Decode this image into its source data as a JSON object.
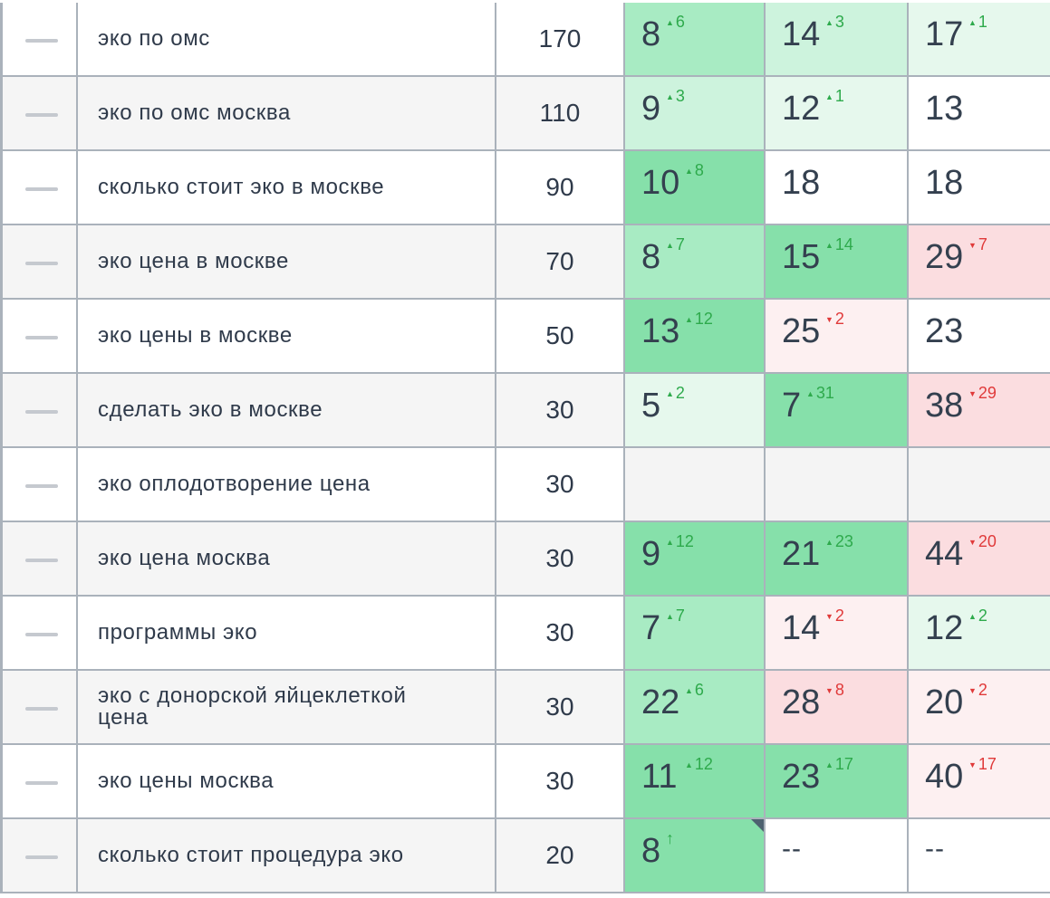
{
  "colors": {
    "green_strong": "#86e0aa",
    "green_medium": "#a8ebc3",
    "green_light": "#cdf3dd",
    "green_pale": "#e6f8ed",
    "red_medium": "#fbdde0",
    "red_pale": "#fdf0f1",
    "empty_gray": "#f4f4f4",
    "white": "#ffffff",
    "up_text": "#2eaa4c",
    "down_text": "#e03a3a",
    "grid_border": "#aab2bb"
  },
  "rows": [
    {
      "keyword": "эко по омс",
      "frequency": "170",
      "positions": [
        {
          "value": "8",
          "change": "6",
          "dir": "up",
          "bg": "green_medium"
        },
        {
          "value": "14",
          "change": "3",
          "dir": "up",
          "bg": "green_light"
        },
        {
          "value": "17",
          "change": "1",
          "dir": "up",
          "bg": "green_pale"
        }
      ]
    },
    {
      "keyword": "эко по омс москва",
      "frequency": "110",
      "positions": [
        {
          "value": "9",
          "change": "3",
          "dir": "up",
          "bg": "green_light"
        },
        {
          "value": "12",
          "change": "1",
          "dir": "up",
          "bg": "green_pale"
        },
        {
          "value": "13",
          "change": "",
          "dir": "",
          "bg": "white"
        }
      ]
    },
    {
      "keyword": "сколько стоит эко в москве",
      "frequency": "90",
      "positions": [
        {
          "value": "10",
          "change": "8",
          "dir": "up",
          "bg": "green_strong"
        },
        {
          "value": "18",
          "change": "",
          "dir": "",
          "bg": "white"
        },
        {
          "value": "18",
          "change": "",
          "dir": "",
          "bg": "white"
        }
      ]
    },
    {
      "keyword": "эко цена в москве",
      "frequency": "70",
      "positions": [
        {
          "value": "8",
          "change": "7",
          "dir": "up",
          "bg": "green_medium"
        },
        {
          "value": "15",
          "change": "14",
          "dir": "up",
          "bg": "green_strong"
        },
        {
          "value": "29",
          "change": "7",
          "dir": "down",
          "bg": "red_medium"
        }
      ]
    },
    {
      "keyword": "эко цены в москве",
      "frequency": "50",
      "positions": [
        {
          "value": "13",
          "change": "12",
          "dir": "up",
          "bg": "green_strong"
        },
        {
          "value": "25",
          "change": "2",
          "dir": "down",
          "bg": "red_pale"
        },
        {
          "value": "23",
          "change": "",
          "dir": "",
          "bg": "white"
        }
      ]
    },
    {
      "keyword": "сделать эко в москве",
      "frequency": "30",
      "positions": [
        {
          "value": "5",
          "change": "2",
          "dir": "up",
          "bg": "green_pale"
        },
        {
          "value": "7",
          "change": "31",
          "dir": "up",
          "bg": "green_strong"
        },
        {
          "value": "38",
          "change": "29",
          "dir": "down",
          "bg": "red_medium"
        }
      ]
    },
    {
      "keyword": "эко оплодотворение цена",
      "frequency": "30",
      "positions": [
        {
          "value": "",
          "change": "",
          "dir": "",
          "bg": "empty_gray"
        },
        {
          "value": "",
          "change": "",
          "dir": "",
          "bg": "empty_gray"
        },
        {
          "value": "",
          "change": "",
          "dir": "",
          "bg": "empty_gray"
        }
      ]
    },
    {
      "keyword": "эко цена москва",
      "frequency": "30",
      "positions": [
        {
          "value": "9",
          "change": "12",
          "dir": "up",
          "bg": "green_strong"
        },
        {
          "value": "21",
          "change": "23",
          "dir": "up",
          "bg": "green_strong"
        },
        {
          "value": "44",
          "change": "20",
          "dir": "down",
          "bg": "red_medium"
        }
      ]
    },
    {
      "keyword": "программы эко",
      "frequency": "30",
      "positions": [
        {
          "value": "7",
          "change": "7",
          "dir": "up",
          "bg": "green_medium"
        },
        {
          "value": "14",
          "change": "2",
          "dir": "down",
          "bg": "red_pale"
        },
        {
          "value": "12",
          "change": "2",
          "dir": "up",
          "bg": "green_pale"
        }
      ]
    },
    {
      "keyword": "эко с донорской яйцеклеткой цена",
      "frequency": "30",
      "positions": [
        {
          "value": "22",
          "change": "6",
          "dir": "up",
          "bg": "green_medium"
        },
        {
          "value": "28",
          "change": "8",
          "dir": "down",
          "bg": "red_medium"
        },
        {
          "value": "20",
          "change": "2",
          "dir": "down",
          "bg": "red_pale"
        }
      ]
    },
    {
      "keyword": "эко цены москва",
      "frequency": "30",
      "positions": [
        {
          "value": "11",
          "change": "12",
          "dir": "up",
          "bg": "green_strong"
        },
        {
          "value": "23",
          "change": "17",
          "dir": "up",
          "bg": "green_strong"
        },
        {
          "value": "40",
          "change": "17",
          "dir": "down",
          "bg": "red_pale"
        }
      ]
    },
    {
      "keyword": "сколько стоит процедура эко",
      "frequency": "20",
      "positions": [
        {
          "value": "8",
          "change": "↑",
          "dir": "new",
          "bg": "green_strong",
          "marker": "corner-flag-icon"
        },
        {
          "value": "--",
          "change": "",
          "dir": "",
          "bg": "white"
        },
        {
          "value": "--",
          "change": "",
          "dir": "",
          "bg": "white"
        }
      ]
    }
  ]
}
